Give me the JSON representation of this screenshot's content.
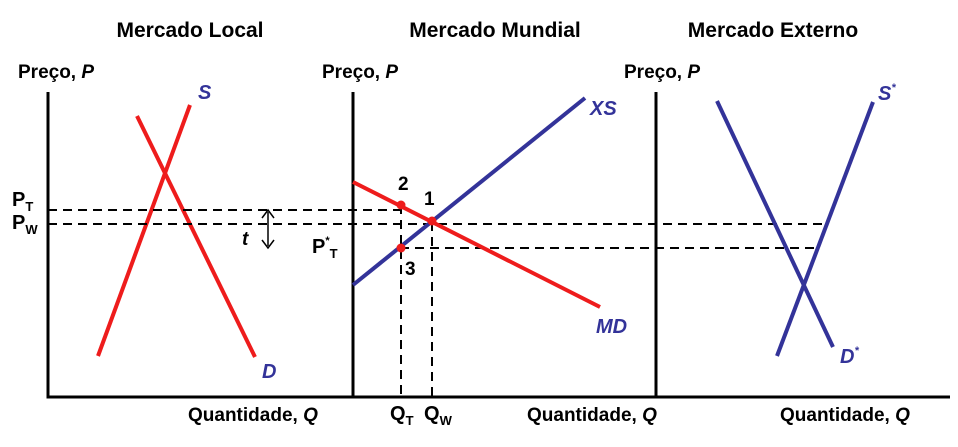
{
  "panels": {
    "local": {
      "title": "Mercado Local",
      "y_axis": "Preço,",
      "y_var": "P",
      "x_axis": "Quantidade,",
      "x_var": "Q",
      "supply": "S",
      "demand": "D"
    },
    "world": {
      "title": "Mercado Mundial",
      "y_axis": "Preço,",
      "y_var": "P",
      "x_axis": "Quantidade,",
      "x_var": "Q",
      "export_supply": "XS",
      "import_demand": "MD"
    },
    "foreign": {
      "title": "Mercado Externo",
      "y_axis": "Preço,",
      "y_var": "P",
      "x_axis": "Quantidade,",
      "x_var": "Q",
      "supply": "S",
      "supply_sup": "*",
      "demand": "D",
      "demand_sup": "*"
    }
  },
  "price_labels": {
    "pt": "P",
    "pt_sub": "T",
    "pw": "P",
    "pw_sub": "W",
    "pstar": "P",
    "pstar_sup": "*",
    "pstar_sub": "T",
    "tariff": "t"
  },
  "quantity_labels": {
    "qt": "Q",
    "qt_sub": "T",
    "qw": "Q",
    "qw_sub": "W"
  },
  "points": [
    "1",
    "2",
    "3"
  ],
  "colors": {
    "red_curves": "#ee1c1c",
    "blue_curves": "#333399",
    "axes": "#000000"
  }
}
